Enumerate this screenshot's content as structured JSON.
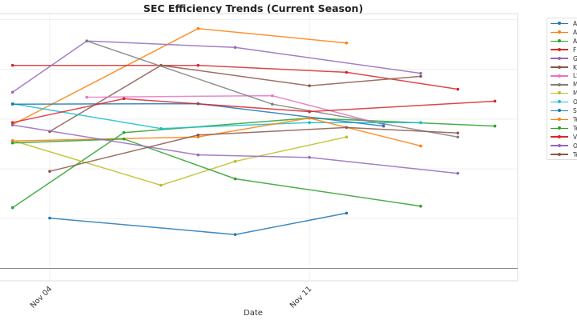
{
  "chart_data": {
    "type": "line",
    "title": "SEC Efficiency Trends (Current Season)",
    "xlabel": "Date",
    "ylabel": "",
    "x_ticks": [
      "Nov 04",
      "Nov 11"
    ],
    "xlim": [
      "Nov 03",
      "Nov 16"
    ],
    "ylim": [
      -0.25,
      5.12
    ],
    "reference_line_y": 0,
    "grid": true,
    "legend_placement": "outside-right",
    "series": [
      {
        "name": "Alab",
        "color": "#1f77b4",
        "points": [
          [
            "Nov 04",
            1.01
          ],
          [
            "Nov 09",
            0.68
          ],
          [
            "Nov 12",
            1.11
          ]
        ]
      },
      {
        "name": "Arka",
        "color": "#ff7f0e",
        "points": [
          [
            "Nov 03",
            2.89
          ],
          [
            "Nov 08",
            4.82
          ],
          [
            "Nov 12",
            4.53
          ]
        ]
      },
      {
        "name": "Aub",
        "color": "#2ca02c",
        "points": [
          [
            "Nov 03",
            1.22
          ],
          [
            "Nov 06",
            2.73
          ],
          [
            "Nov 11",
            3.02
          ],
          [
            "Nov 16",
            2.86
          ]
        ]
      },
      {
        "name": "Flori",
        "color": "#d62728",
        "points": [
          [
            "Nov 03",
            4.08
          ],
          [
            "Nov 08",
            4.08
          ],
          [
            "Nov 12",
            3.94
          ],
          [
            "Nov 15",
            3.6
          ]
        ]
      },
      {
        "name": "Geo",
        "color": "#9467bd",
        "points": [
          [
            "Nov 03",
            3.54
          ],
          [
            "Nov 05",
            4.57
          ],
          [
            "Nov 09",
            4.44
          ],
          [
            "Nov 14",
            3.92
          ]
        ]
      },
      {
        "name": "Ken",
        "color": "#8c564b",
        "points": [
          [
            "Nov 04",
            2.75
          ],
          [
            "Nov 07",
            4.08
          ],
          [
            "Nov 11",
            3.67
          ],
          [
            "Nov 14",
            3.86
          ]
        ]
      },
      {
        "name": "LSU",
        "color": "#e377c2",
        "points": [
          [
            "Nov 05",
            3.44
          ],
          [
            "Nov 10",
            3.47
          ],
          [
            "Nov 13",
            2.89
          ]
        ]
      },
      {
        "name": "Miss",
        "color": "#7f7f7f",
        "points": [
          [
            "Nov 05",
            4.57
          ],
          [
            "Nov 10",
            3.3
          ],
          [
            "Nov 15",
            2.64
          ]
        ]
      },
      {
        "name": "Miss",
        "color": "#bcbd22",
        "points": [
          [
            "Nov 03",
            2.57
          ],
          [
            "Nov 07",
            1.67
          ],
          [
            "Nov 09",
            2.15
          ],
          [
            "Nov 12",
            2.64
          ]
        ]
      },
      {
        "name": "Ole",
        "color": "#17becf",
        "points": [
          [
            "Nov 03",
            3.31
          ],
          [
            "Nov 07",
            2.81
          ],
          [
            "Nov 11",
            2.93
          ],
          [
            "Nov 14",
            2.93
          ]
        ]
      },
      {
        "name": "Sou",
        "color": "#1f77b4",
        "points": [
          [
            "Nov 03",
            3.3
          ],
          [
            "Nov 08",
            3.31
          ],
          [
            "Nov 13",
            2.86
          ]
        ]
      },
      {
        "name": "Ten",
        "color": "#ff7f0e",
        "points": [
          [
            "Nov 03",
            2.56
          ],
          [
            "Nov 08",
            2.64
          ],
          [
            "Nov 11",
            3.02
          ],
          [
            "Nov 14",
            2.46
          ]
        ]
      },
      {
        "name": "Texa",
        "color": "#2ca02c",
        "points": [
          [
            "Nov 03",
            2.52
          ],
          [
            "Nov 06",
            2.6
          ],
          [
            "Nov 09",
            1.8
          ],
          [
            "Nov 14",
            1.25
          ]
        ]
      },
      {
        "name": "Van",
        "color": "#d62728",
        "points": [
          [
            "Nov 03",
            2.93
          ],
          [
            "Nov 06",
            3.41
          ],
          [
            "Nov 11",
            3.15
          ],
          [
            "Nov 16",
            3.36
          ]
        ]
      },
      {
        "name": "Okl",
        "color": "#9467bd",
        "points": [
          [
            "Nov 03",
            2.88
          ],
          [
            "Nov 08",
            2.28
          ],
          [
            "Nov 11",
            2.23
          ],
          [
            "Nov 15",
            1.91
          ]
        ]
      },
      {
        "name": "Texa",
        "color": "#8c564b",
        "points": [
          [
            "Nov 04",
            1.95
          ],
          [
            "Nov 08",
            2.68
          ],
          [
            "Nov 12",
            2.83
          ],
          [
            "Nov 15",
            2.72
          ]
        ]
      }
    ]
  }
}
